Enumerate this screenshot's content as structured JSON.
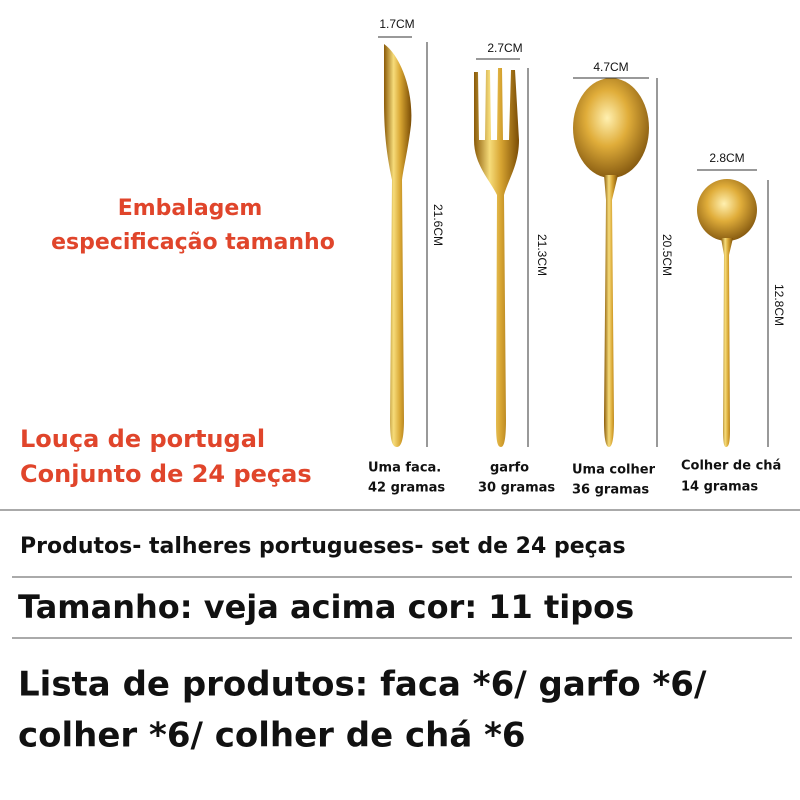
{
  "header": {
    "lines": [
      "Embalagem",
      "especificação tamanho"
    ]
  },
  "badge": {
    "lines": [
      "Louça de portugal",
      "Conjunto de 24 peças"
    ]
  },
  "items": [
    {
      "width": "1.7CM",
      "length": "21.6CM",
      "name": "Uma faca.",
      "weight": "42 gramas"
    },
    {
      "width": "2.7CM",
      "length": "21.3CM",
      "name": "garfo",
      "weight": "30 gramas"
    },
    {
      "width": "4.7CM",
      "length": "20.5CM",
      "name": "Uma colher",
      "weight": "36 gramas"
    },
    {
      "width": "2.8CM",
      "length": "12.8CM",
      "name": "Colher de chá",
      "weight": "14 gramas"
    }
  ],
  "specs": {
    "product": "Produtos- talheres portugueses- set de 24 peças",
    "size_color": "Tamanho: veja acima cor: 11 tipos",
    "list": [
      "Lista de produtos: faca *6/ garfo *6/",
      "colher *6/ colher de chá *6"
    ]
  }
}
